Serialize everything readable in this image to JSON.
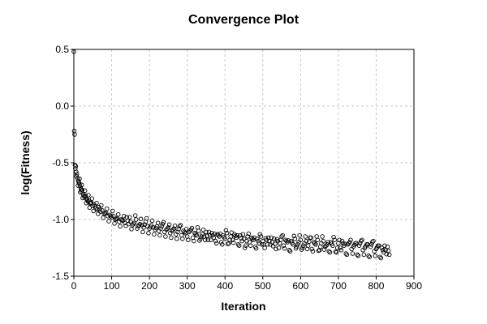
{
  "chart_data": {
    "type": "scatter",
    "title": "Convergence Plot",
    "xlabel": "Iteration",
    "ylabel": "log(Fitness)",
    "xlim": [
      0,
      900
    ],
    "ylim": [
      -1.5,
      0.5
    ],
    "xticks": [
      0,
      100,
      200,
      300,
      400,
      500,
      600,
      700,
      800,
      900
    ],
    "xtick_labels": [
      "0",
      "100",
      "200",
      "300",
      "400",
      "500",
      "600",
      "700",
      "800",
      "900"
    ],
    "yticks": [
      0.5,
      0.0,
      -0.5,
      -1.0,
      -1.5
    ],
    "ytick_labels": [
      "0.5",
      "0.0",
      "-0.5",
      "-1.0",
      "-1.5"
    ],
    "grid": true,
    "marker": "open-circle",
    "series": [
      {
        "x": [
          0,
          1,
          2,
          3,
          4,
          5,
          6,
          7,
          8,
          10,
          12,
          14,
          16,
          18,
          20,
          22,
          25,
          28,
          31,
          34,
          37,
          40,
          43,
          46,
          50,
          54,
          58,
          62,
          66,
          70,
          75,
          80,
          85,
          90,
          95,
          100,
          105,
          110,
          115,
          120,
          125,
          130,
          135,
          140,
          145,
          150,
          155,
          160,
          165,
          170,
          175,
          180,
          185,
          190,
          195,
          200,
          205,
          210,
          215,
          220,
          225,
          230,
          235,
          240,
          245,
          250,
          255,
          260,
          265,
          270,
          275,
          280,
          285,
          290,
          295,
          300,
          305,
          310,
          315,
          320,
          325,
          330,
          335,
          340,
          345,
          350,
          355,
          360,
          365,
          370,
          375,
          380,
          385,
          390,
          395,
          400,
          405,
          410,
          415,
          420,
          425,
          430,
          435,
          440,
          445,
          450,
          455,
          460,
          465,
          470,
          475,
          480,
          485,
          490,
          495,
          500,
          505,
          510,
          515,
          520,
          525,
          530,
          535,
          540,
          545,
          550,
          555,
          560,
          565,
          570,
          575,
          580,
          585,
          590,
          595,
          600,
          605,
          610,
          615,
          620,
          625,
          630,
          635,
          640,
          645,
          650,
          655,
          660,
          665,
          670,
          675,
          680,
          685,
          690,
          695,
          700,
          705,
          710,
          715,
          720,
          725,
          730,
          735,
          740,
          745,
          750,
          755,
          760,
          765,
          770,
          775,
          780,
          785,
          790,
          795,
          800,
          805,
          810,
          815,
          820,
          825,
          830,
          835
        ],
        "y": [
          0.48,
          -0.22,
          -0.25,
          -0.52,
          -0.55,
          -0.53,
          -0.58,
          -0.62,
          -0.6,
          -0.64,
          -0.66,
          -0.68,
          -0.7,
          -0.72,
          -0.75,
          -0.74,
          -0.78,
          -0.8,
          -0.79,
          -0.82,
          -0.84,
          -0.83,
          -0.86,
          -0.85,
          -0.88,
          -0.87,
          -0.9,
          -0.91,
          -0.89,
          -0.93,
          -0.92,
          -0.95,
          -0.94,
          -0.97,
          -0.96,
          -0.98,
          -0.97,
          -1.0,
          -0.99,
          -1.02,
          -1.0,
          -1.01,
          -1.03,
          -0.98,
          -1.04,
          -1.02,
          -1.05,
          -1.03,
          -1.0,
          -1.06,
          -1.04,
          -1.05,
          -1.07,
          -1.02,
          -1.06,
          -1.08,
          -1.05,
          -1.07,
          -1.09,
          -1.06,
          -1.1,
          -1.08,
          -1.04,
          -1.11,
          -1.09,
          -1.07,
          -1.12,
          -1.1,
          -1.08,
          -1.13,
          -1.11,
          -1.06,
          -1.14,
          -1.1,
          -1.12,
          -1.15,
          -1.11,
          -1.09,
          -1.16,
          -1.12,
          -1.14,
          -1.1,
          -1.17,
          -1.13,
          -1.15,
          -1.11,
          -1.18,
          -1.14,
          -1.12,
          -1.16,
          -1.19,
          -1.13,
          -1.15,
          -1.2,
          -1.14,
          -1.17,
          -1.12,
          -1.21,
          -1.15,
          -1.18,
          -1.13,
          -1.16,
          -1.22,
          -1.14,
          -1.19,
          -1.17,
          -1.23,
          -1.15,
          -1.2,
          -1.16,
          -1.18,
          -1.24,
          -1.17,
          -1.21,
          -1.15,
          -1.19,
          -1.25,
          -1.18,
          -1.16,
          -1.22,
          -1.2,
          -1.17,
          -1.26,
          -1.19,
          -1.21,
          -1.15,
          -1.23,
          -1.18,
          -1.2,
          -1.27,
          -1.19,
          -1.22,
          -1.17,
          -1.24,
          -1.2,
          -1.18,
          -1.25,
          -1.21,
          -1.19,
          -1.23,
          -1.16,
          -1.26,
          -1.2,
          -1.22,
          -1.18,
          -1.27,
          -1.21,
          -1.19,
          -1.24,
          -1.22,
          -1.28,
          -1.2,
          -1.23,
          -1.18,
          -1.29,
          -1.21,
          -1.25,
          -1.19,
          -1.23,
          -1.3,
          -1.22,
          -1.2,
          -1.26,
          -1.24,
          -1.21,
          -1.31,
          -1.23,
          -1.19,
          -1.27,
          -1.25,
          -1.22,
          -1.32,
          -1.24,
          -1.2,
          -1.28,
          -1.26,
          -1.23,
          -1.33,
          -1.25,
          -1.29,
          -1.27,
          -1.24,
          -1.31
        ]
      }
    ]
  }
}
